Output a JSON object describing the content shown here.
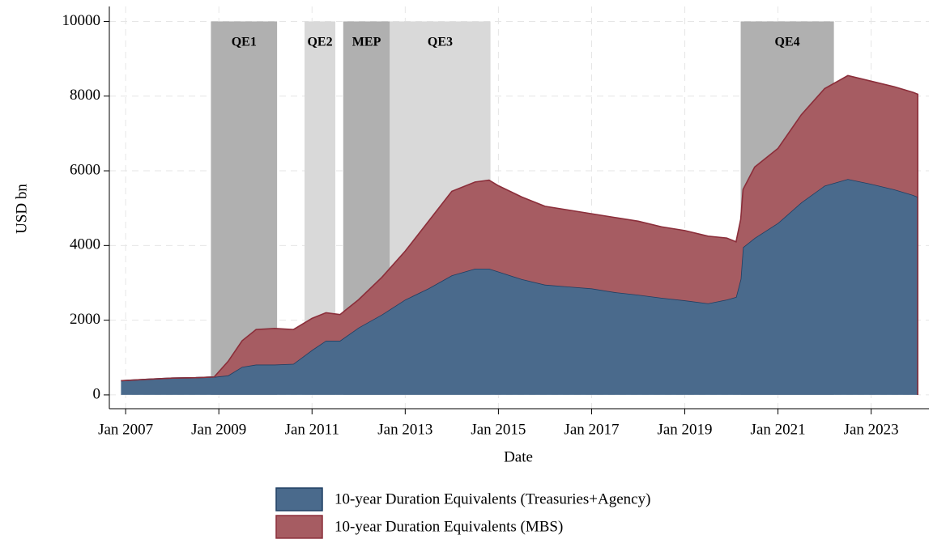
{
  "chart_data": {
    "type": "stacked_area",
    "x_label": "Date",
    "y_label": "USD bn",
    "x": [
      2006.9,
      2007.5,
      2008.0,
      2008.5,
      2008.9,
      2009.2,
      2009.5,
      2009.8,
      2010.2,
      2010.6,
      2011.0,
      2011.3,
      2011.6,
      2012.0,
      2012.5,
      2013.0,
      2013.5,
      2014.0,
      2014.5,
      2014.8,
      2015.0,
      2015.5,
      2016.0,
      2016.5,
      2017.0,
      2017.5,
      2018.0,
      2018.5,
      2019.0,
      2019.5,
      2019.9,
      2020.1,
      2020.2,
      2020.25,
      2020.5,
      2021.0,
      2021.5,
      2022.0,
      2022.5,
      2023.0,
      2023.5,
      2023.9,
      2024.0
    ],
    "series": [
      {
        "name": "10-year Duration Equivalents (Treasuries+Agency)",
        "color": "#4a6a8c",
        "line_color": "#1f3f63",
        "values": [
          380,
          420,
          450,
          460,
          480,
          520,
          750,
          810,
          810,
          830,
          1200,
          1450,
          1450,
          1800,
          2150,
          2550,
          2850,
          3200,
          3380,
          3380,
          3300,
          3100,
          2950,
          2900,
          2850,
          2750,
          2680,
          2600,
          2530,
          2450,
          2550,
          2620,
          3100,
          3950,
          4200,
          4600,
          5150,
          5600,
          5780,
          5650,
          5500,
          5350,
          5300
        ]
      },
      {
        "name": "10-year Duration Equivalents (MBS)",
        "color": "#a65c62",
        "line_color": "#8b2e3a",
        "values": [
          0,
          0,
          0,
          0,
          0,
          380,
          700,
          940,
          970,
          920,
          850,
          750,
          700,
          750,
          1000,
          1300,
          1800,
          2250,
          2320,
          2370,
          2300,
          2200,
          2100,
          2050,
          2000,
          2000,
          1970,
          1900,
          1870,
          1800,
          1650,
          1480,
          1600,
          1550,
          1900,
          2000,
          2350,
          2600,
          2770,
          2750,
          2750,
          2750,
          2750
        ]
      }
    ],
    "shading": [
      {
        "label": "QE1",
        "start": 2008.83,
        "end": 2010.25,
        "color": "#b0b0b0"
      },
      {
        "label": "QE2",
        "start": 2010.84,
        "end": 2011.5,
        "color": "#d9d9d9"
      },
      {
        "label": "MEP",
        "start": 2011.67,
        "end": 2012.67,
        "color": "#b0b0b0"
      },
      {
        "label": "QE3",
        "start": 2012.67,
        "end": 2014.83,
        "color": "#d9d9d9"
      },
      {
        "label": "QE4",
        "start": 2020.2,
        "end": 2022.2,
        "color": "#b0b0b0"
      }
    ],
    "xlim": [
      2006.65,
      2024.24
    ],
    "ylim": [
      -370,
      10400
    ],
    "xticks": [
      {
        "value": 2007,
        "label": "Jan 2007"
      },
      {
        "value": 2009,
        "label": "Jan 2009"
      },
      {
        "value": 2011,
        "label": "Jan 2011"
      },
      {
        "value": 2013,
        "label": "Jan 2013"
      },
      {
        "value": 2015,
        "label": "Jan 2015"
      },
      {
        "value": 2017,
        "label": "Jan 2017"
      },
      {
        "value": 2019,
        "label": "Jan 2019"
      },
      {
        "value": 2021,
        "label": "Jan 2021"
      },
      {
        "value": 2023,
        "label": "Jan 2023"
      }
    ],
    "yticks": [
      0,
      2000,
      4000,
      6000,
      8000,
      10000
    ],
    "grid": true
  }
}
